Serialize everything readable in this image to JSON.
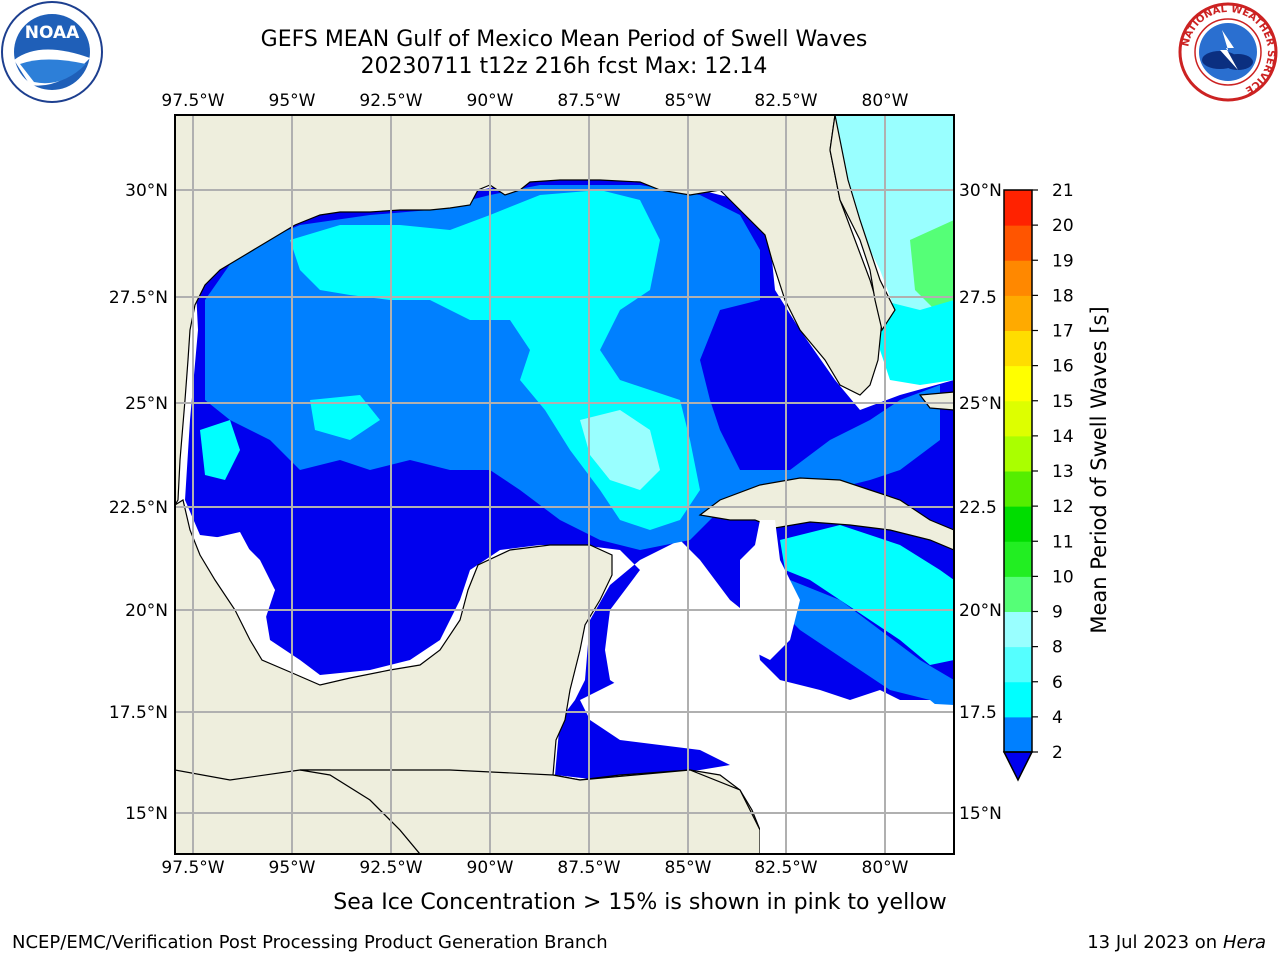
{
  "header": {
    "title": "GEFS MEAN Gulf of Mexico Mean Period of Swell Waves",
    "subtitle": "20230711 t12z 216h fcst   Max: 12.14"
  },
  "logos": {
    "noaa_text": "NOAA",
    "nws_ring_text": "NATIONAL WEATHER SERVICE"
  },
  "map": {
    "lon_labels": [
      "97.5°W",
      "95°W",
      "92.5°W",
      "90°W",
      "87.5°W",
      "85°W",
      "82.5°W",
      "80°W"
    ],
    "lat_labels": [
      "30°N",
      "27.5°N",
      "25°N",
      "22.5°N",
      "20°N",
      "17.5°N",
      "15°N"
    ],
    "lat_labels_right": [
      "30°N",
      "27.5",
      "25°N",
      "22.5",
      "20°N",
      "17.5",
      "15°N"
    ],
    "colors": {
      "land": "#eeeedd",
      "grid": "#b0b0b0",
      "level_blue_dark": "#0000ee",
      "level_blue": "#0080ff",
      "level_cyan": "#00ffff",
      "level_cyan_light": "#99ffff",
      "level_green_light": "#55ff77",
      "level_green": "#22ee00",
      "level_yellowgreen": "#88ee00"
    }
  },
  "colorbar": {
    "title": "Mean Period of Swell Waves [s]",
    "ticks": [
      "2",
      "4",
      "6",
      "8",
      "9",
      "10",
      "11",
      "12",
      "13",
      "14",
      "15",
      "16",
      "17",
      "18",
      "19",
      "20",
      "21"
    ],
    "colors": [
      "#0000ee",
      "#0080ff",
      "#00ffff",
      "#55ffff",
      "#99ffff",
      "#55ff77",
      "#22ee22",
      "#00dd00",
      "#55ee00",
      "#aaff00",
      "#ddff00",
      "#ffff00",
      "#ffdd00",
      "#ffaa00",
      "#ff8800",
      "#ff5500",
      "#ff2200",
      "#ff0000"
    ]
  },
  "footer": {
    "note": "Sea Ice Concentration > 15% is shown in pink to yellow",
    "left": "NCEP/EMC/Verification Post Processing Product Generation Branch",
    "right_prefix": "13 Jul 2023 on ",
    "right_host": "Hera"
  }
}
